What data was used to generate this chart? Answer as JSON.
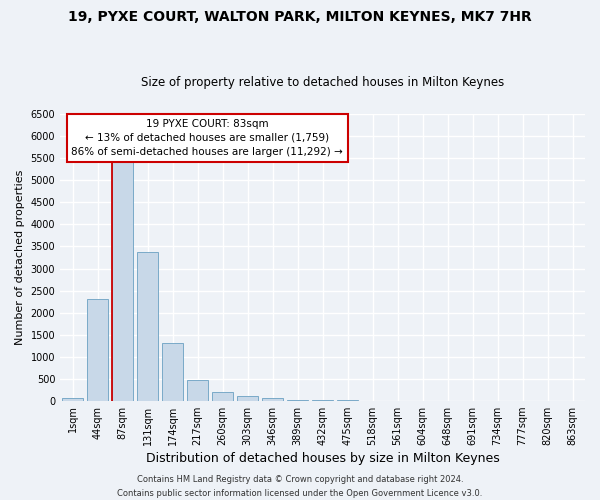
{
  "title1": "19, PYXE COURT, WALTON PARK, MILTON KEYNES, MK7 7HR",
  "title2": "Size of property relative to detached houses in Milton Keynes",
  "xlabel": "Distribution of detached houses by size in Milton Keynes",
  "ylabel": "Number of detached properties",
  "bar_labels": [
    "1sqm",
    "44sqm",
    "87sqm",
    "131sqm",
    "174sqm",
    "217sqm",
    "260sqm",
    "303sqm",
    "346sqm",
    "389sqm",
    "432sqm",
    "475sqm",
    "518sqm",
    "561sqm",
    "604sqm",
    "648sqm",
    "691sqm",
    "734sqm",
    "777sqm",
    "820sqm",
    "863sqm"
  ],
  "bar_values": [
    50,
    2300,
    5450,
    3380,
    1300,
    480,
    190,
    100,
    50,
    20,
    10,
    10,
    0,
    0,
    0,
    0,
    0,
    0,
    0,
    0,
    0
  ],
  "bar_color": "#c8d8e8",
  "bar_edgecolor": "#7aaac8",
  "ylim": [
    0,
    6500
  ],
  "yticks": [
    0,
    500,
    1000,
    1500,
    2000,
    2500,
    3000,
    3500,
    4000,
    4500,
    5000,
    5500,
    6000,
    6500
  ],
  "property_line_bin": 2,
  "property_line_color": "#cc0000",
  "annotation_title": "19 PYXE COURT: 83sqm",
  "annotation_line1": "← 13% of detached houses are smaller (1,759)",
  "annotation_line2": "86% of semi-detached houses are larger (11,292) →",
  "annotation_box_color": "#ffffff",
  "annotation_box_edgecolor": "#cc0000",
  "footer1": "Contains HM Land Registry data © Crown copyright and database right 2024.",
  "footer2": "Contains public sector information licensed under the Open Government Licence v3.0.",
  "background_color": "#eef2f7",
  "grid_color": "#ffffff",
  "title1_fontsize": 10,
  "title2_fontsize": 8.5,
  "xlabel_fontsize": 9,
  "ylabel_fontsize": 8,
  "tick_fontsize": 7,
  "footer_fontsize": 6
}
